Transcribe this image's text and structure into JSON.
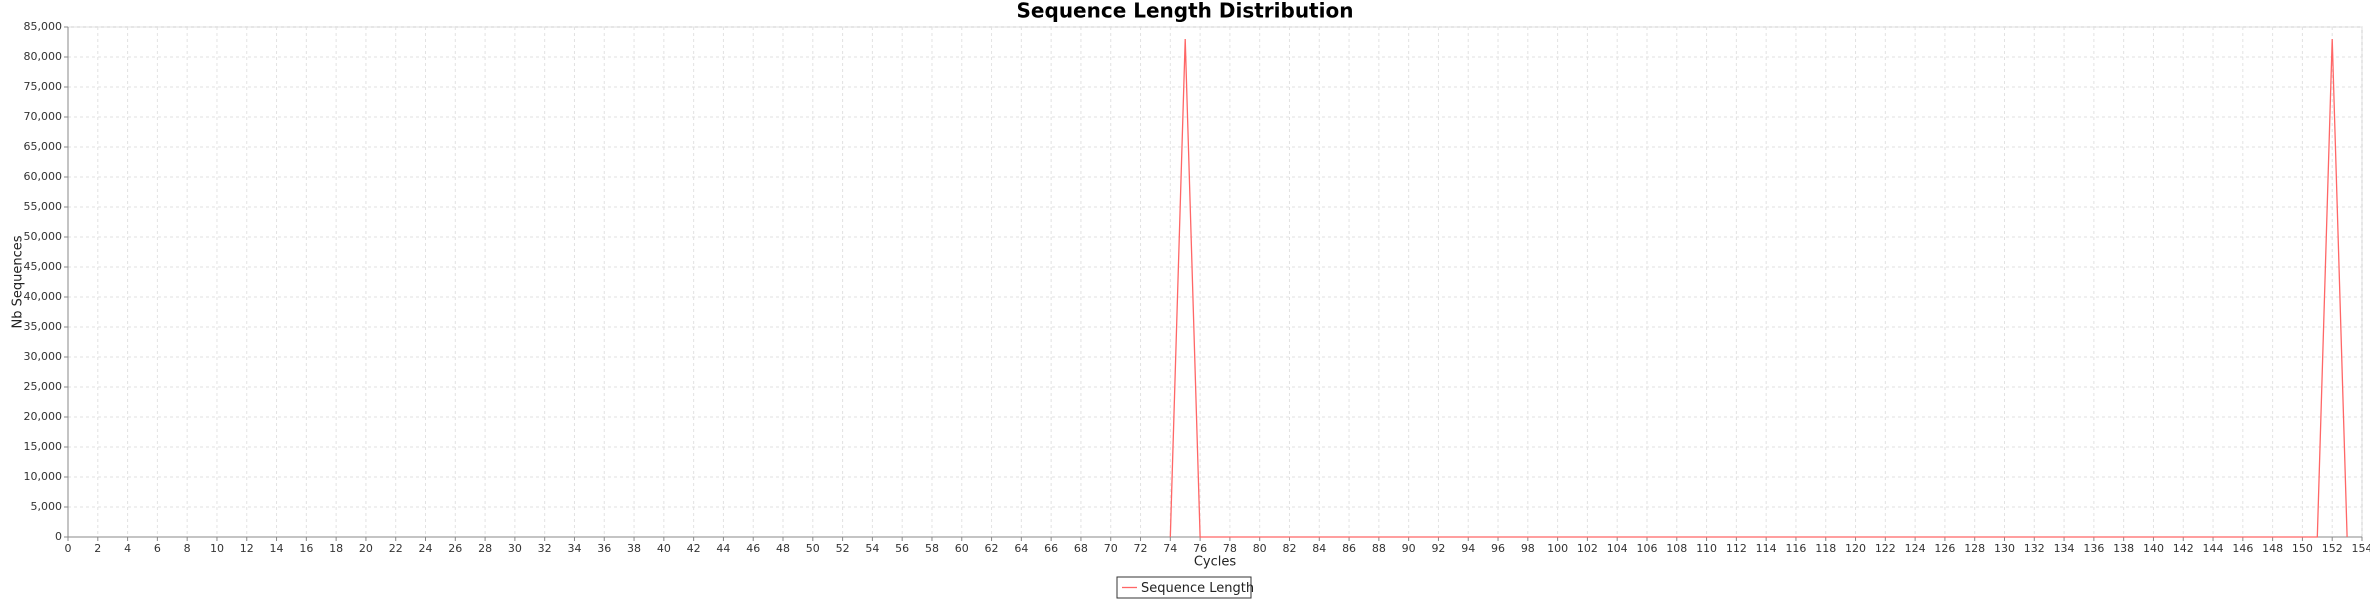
{
  "chart_data": {
    "type": "line",
    "title": "Sequence Length Distribution",
    "x_label": "Cycles",
    "y_label": "Nb Sequences",
    "x": [
      74,
      75,
      76,
      151,
      152,
      153
    ],
    "series": [
      {
        "name": "Sequence Length",
        "color": "#ff6666",
        "values": [
          0,
          83000,
          0,
          0,
          83000,
          0
        ]
      }
    ],
    "xlim": [
      0,
      154
    ],
    "xticks": [
      0,
      2,
      4,
      6,
      8,
      10,
      12,
      14,
      16,
      18,
      20,
      22,
      24,
      26,
      28,
      30,
      32,
      34,
      36,
      38,
      40,
      42,
      44,
      46,
      48,
      50,
      52,
      54,
      56,
      58,
      60,
      62,
      64,
      66,
      68,
      70,
      72,
      74,
      76,
      78,
      80,
      82,
      84,
      86,
      88,
      90,
      92,
      94,
      96,
      98,
      100,
      102,
      104,
      106,
      108,
      110,
      112,
      114,
      116,
      118,
      120,
      122,
      124,
      126,
      128,
      130,
      132,
      134,
      136,
      138,
      140,
      142,
      144,
      146,
      148,
      150,
      152,
      154
    ],
    "ylim": [
      0,
      85000
    ],
    "yticks": [
      0,
      {
        "value": 5000,
        "label": "5,000"
      },
      {
        "value": 10000,
        "label": "10,000"
      },
      {
        "value": 15000,
        "label": "15,000"
      },
      {
        "value": 20000,
        "label": "20,000"
      },
      {
        "value": 25000,
        "label": "25,000"
      },
      {
        "value": 30000,
        "label": "30,000"
      },
      {
        "value": 35000,
        "label": "35,000"
      },
      {
        "value": 40000,
        "label": "40,000"
      },
      {
        "value": 45000,
        "label": "45,000"
      },
      {
        "value": 50000,
        "label": "50,000"
      },
      {
        "value": 55000,
        "label": "55,000"
      },
      {
        "value": 60000,
        "label": "60,000"
      },
      {
        "value": 65000,
        "label": "65,000"
      },
      {
        "value": 70000,
        "label": "70,000"
      },
      {
        "value": 75000,
        "label": "75,000"
      },
      {
        "value": 80000,
        "label": "80,000"
      },
      {
        "value": 85000,
        "label": "85,000"
      }
    ],
    "grid": true,
    "legend": "bottom"
  }
}
